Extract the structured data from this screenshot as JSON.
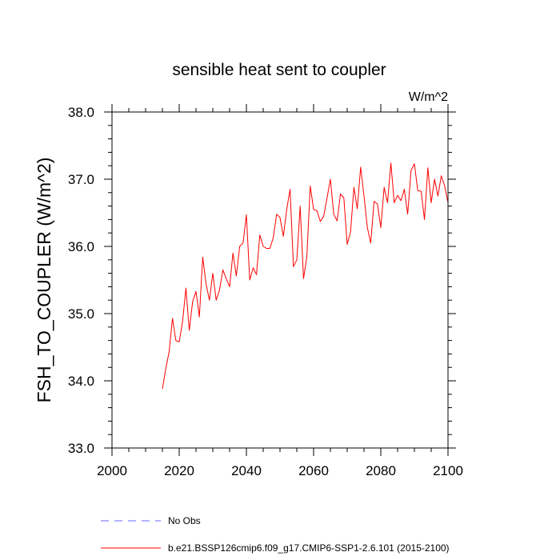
{
  "chart_data": {
    "type": "line",
    "title": "sensible heat sent to coupler",
    "units": "W/m^2",
    "ylabel": "FSH_TO_COUPLER  (W/m^2)",
    "xlabel": "",
    "xlim": [
      2000,
      2100
    ],
    "ylim": [
      33.0,
      38.0
    ],
    "xticks": [
      2000,
      2020,
      2040,
      2060,
      2080,
      2100
    ],
    "xtick_labels": [
      "2000",
      "2020",
      "2040",
      "2060",
      "2080",
      "2100"
    ],
    "yticks": [
      33.0,
      34.0,
      35.0,
      36.0,
      37.0,
      38.0
    ],
    "ytick_labels": [
      "33.0",
      "34.0",
      "35.0",
      "36.0",
      "37.0",
      "38.0"
    ],
    "grid": false,
    "legend_position": "bottom",
    "series": [
      {
        "name": "b.e21.BSSP126cmip6.f09_g17.CMIP6-SSP1-2.6.101 (2015-2100)",
        "color": "#ff0000",
        "style": "solid",
        "x": [
          2015,
          2016,
          2017,
          2018,
          2019,
          2020,
          2021,
          2022,
          2023,
          2024,
          2025,
          2026,
          2027,
          2028,
          2029,
          2030,
          2031,
          2032,
          2033,
          2034,
          2035,
          2036,
          2037,
          2038,
          2039,
          2040,
          2041,
          2042,
          2043,
          2044,
          2045,
          2046,
          2047,
          2048,
          2049,
          2050,
          2051,
          2052,
          2053,
          2054,
          2055,
          2056,
          2057,
          2058,
          2059,
          2060,
          2061,
          2062,
          2063,
          2064,
          2065,
          2066,
          2067,
          2068,
          2069,
          2070,
          2071,
          2072,
          2073,
          2074,
          2075,
          2076,
          2077,
          2078,
          2079,
          2080,
          2081,
          2082,
          2083,
          2084,
          2085,
          2086,
          2087,
          2088,
          2089,
          2090,
          2091,
          2092,
          2093,
          2094,
          2095,
          2096,
          2097,
          2098,
          2099,
          2100
        ],
        "values": [
          33.88,
          34.18,
          34.43,
          34.93,
          34.6,
          34.58,
          34.88,
          35.38,
          34.75,
          35.18,
          35.33,
          34.95,
          35.84,
          35.44,
          35.2,
          35.6,
          35.2,
          35.35,
          35.65,
          35.52,
          35.4,
          35.9,
          35.56,
          36.0,
          36.05,
          36.47,
          35.5,
          35.68,
          35.58,
          36.17,
          36.0,
          35.97,
          35.97,
          36.13,
          36.48,
          36.43,
          36.15,
          36.55,
          36.85,
          35.7,
          35.8,
          36.6,
          35.52,
          35.85,
          36.9,
          36.55,
          36.53,
          36.37,
          36.45,
          36.72,
          37.0,
          36.48,
          36.38,
          36.78,
          36.72,
          36.03,
          36.22,
          36.88,
          36.56,
          37.18,
          36.75,
          36.28,
          36.05,
          36.67,
          36.63,
          36.28,
          36.88,
          36.65,
          37.24,
          36.65,
          36.76,
          36.68,
          36.85,
          36.48,
          37.13,
          37.23,
          36.83,
          36.82,
          36.4,
          37.17,
          36.65,
          37.0,
          36.75,
          37.05,
          36.9,
          36.65
        ]
      },
      {
        "name": "No Obs",
        "color": "#6a6aff",
        "style": "dashed",
        "x": [],
        "values": []
      }
    ]
  }
}
